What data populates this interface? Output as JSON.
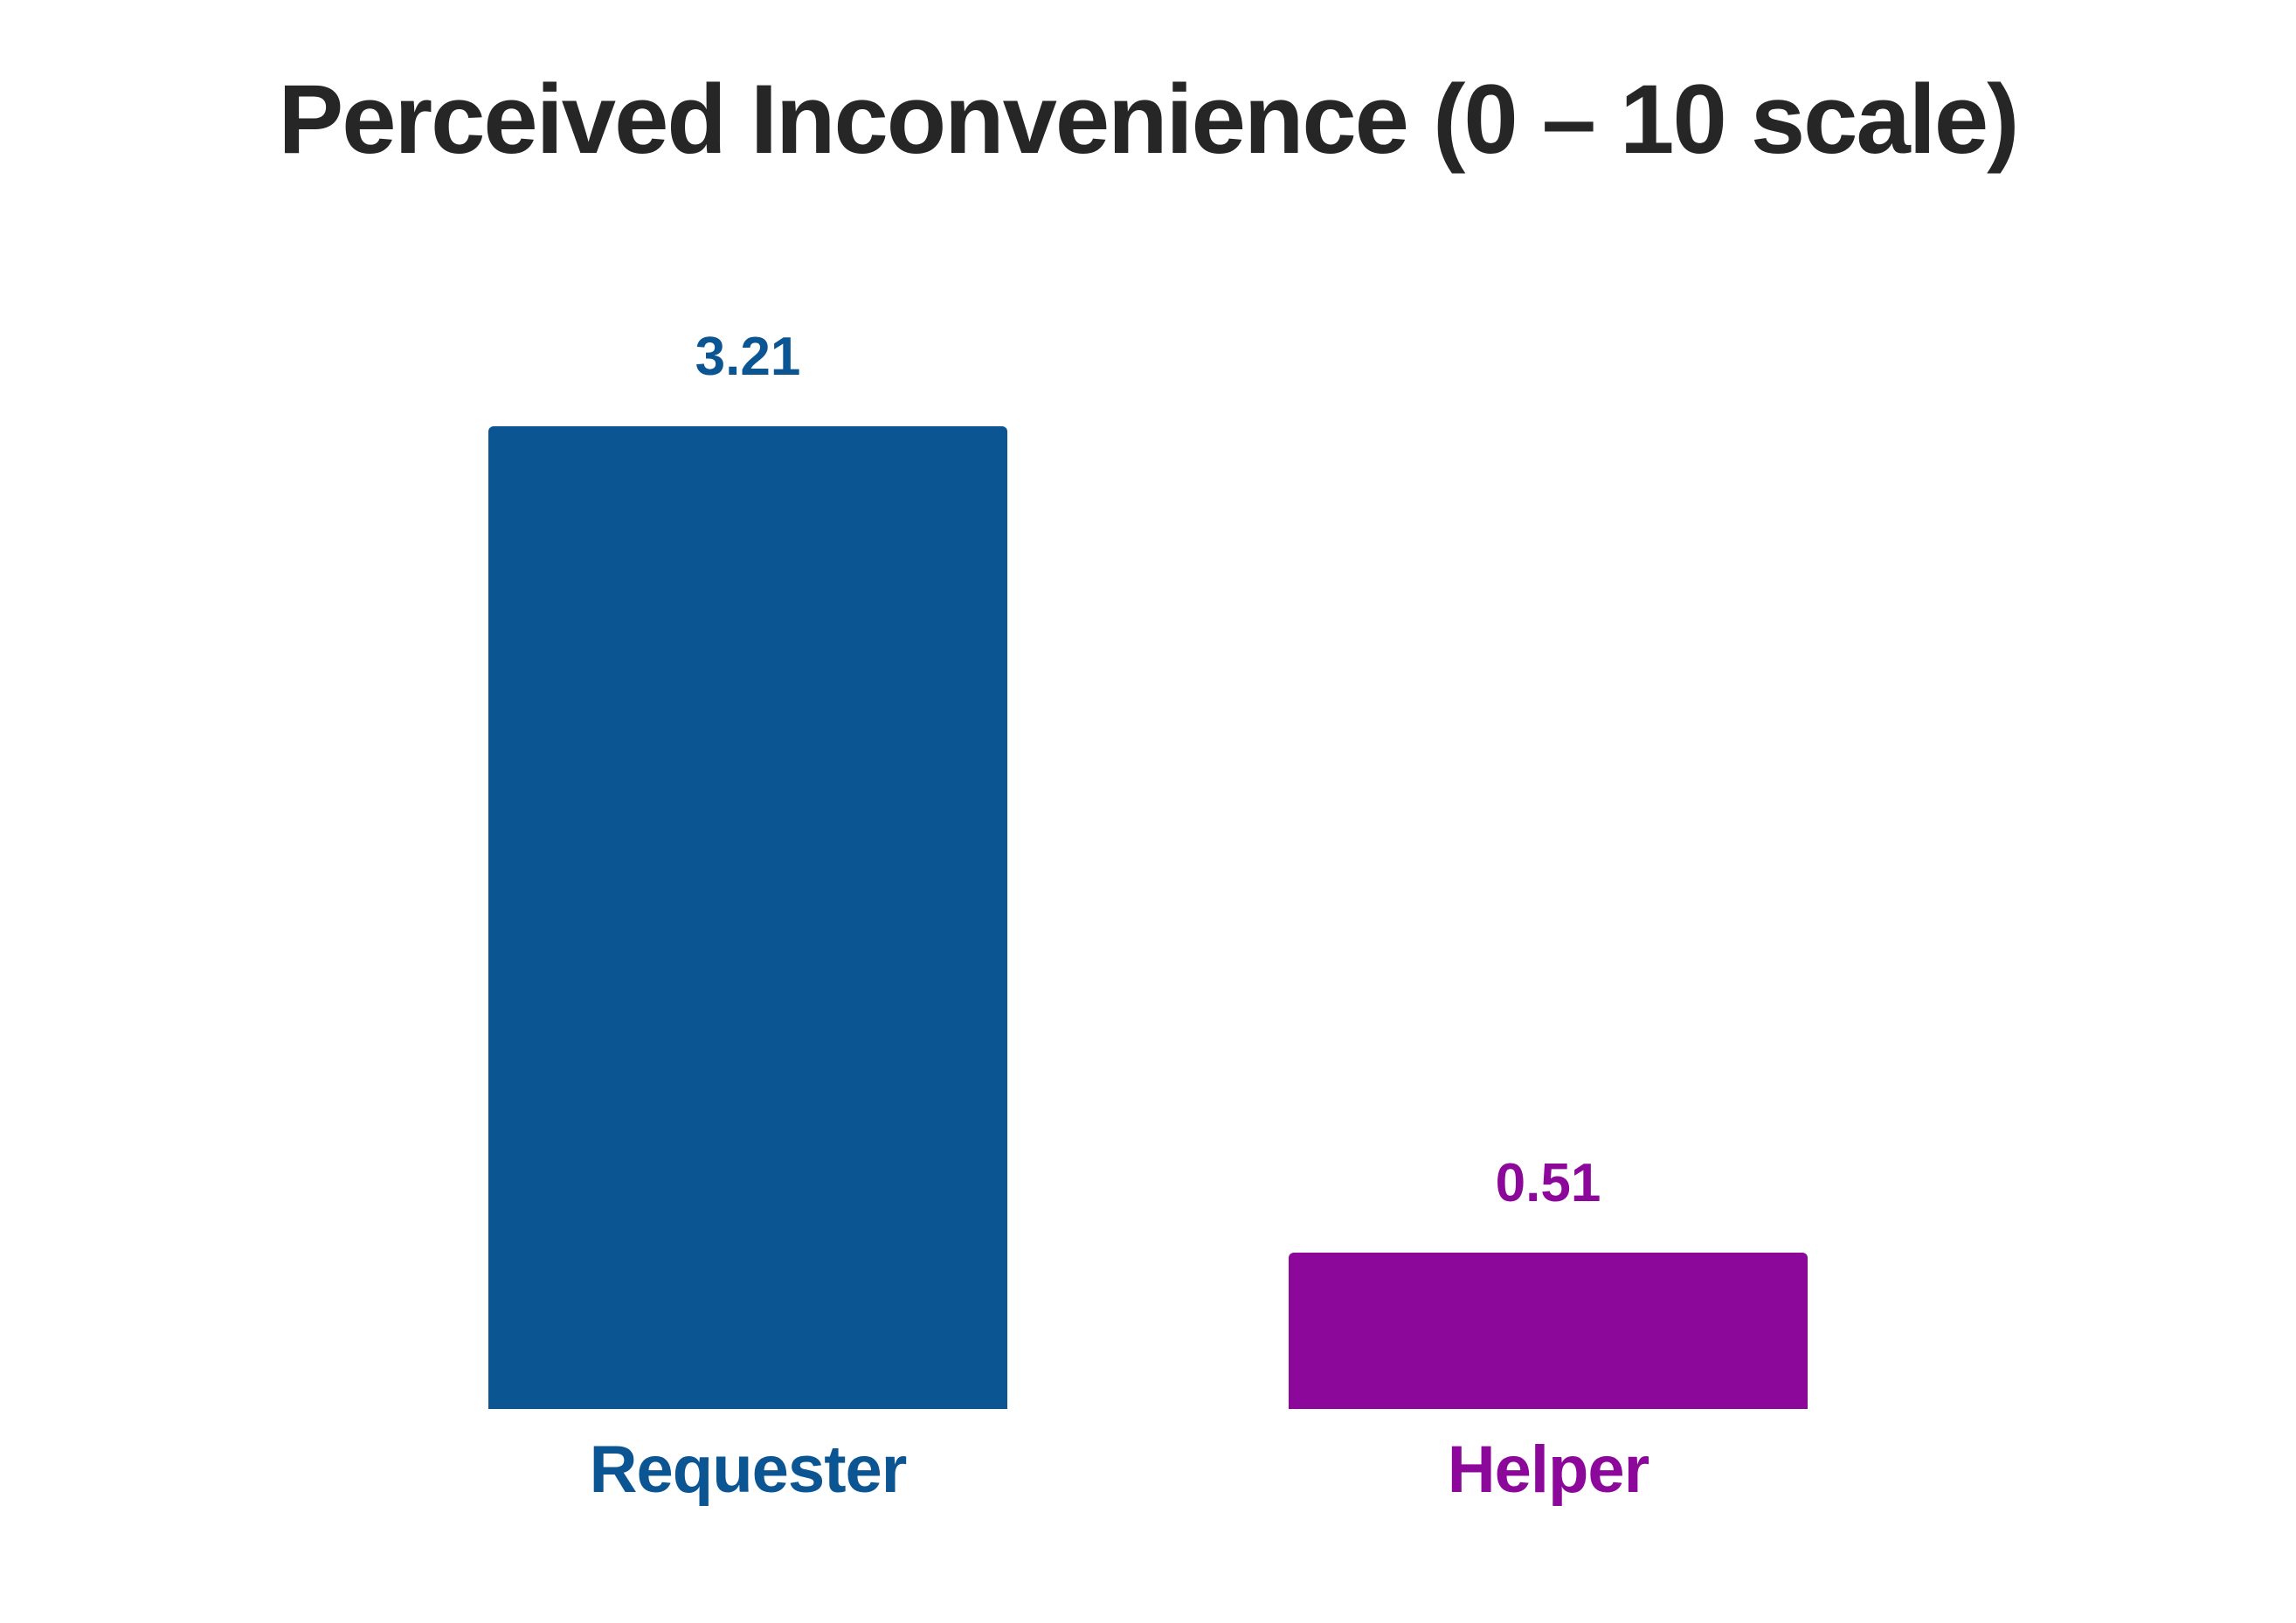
{
  "chart_data": {
    "type": "bar",
    "title": "Perceived Inconvenience (0 – 10 scale)",
    "title_color": "#262626",
    "categories": [
      "Requester",
      "Helper"
    ],
    "values": [
      3.21,
      0.51
    ],
    "value_labels": [
      "3.21",
      "0.51"
    ],
    "series_colors": [
      "#0B5593",
      "#8B089B"
    ],
    "xlabel": "",
    "ylabel": "",
    "axes_visible": false,
    "gridlines": false,
    "legend_position": "none",
    "background_color": "#ffffff"
  }
}
